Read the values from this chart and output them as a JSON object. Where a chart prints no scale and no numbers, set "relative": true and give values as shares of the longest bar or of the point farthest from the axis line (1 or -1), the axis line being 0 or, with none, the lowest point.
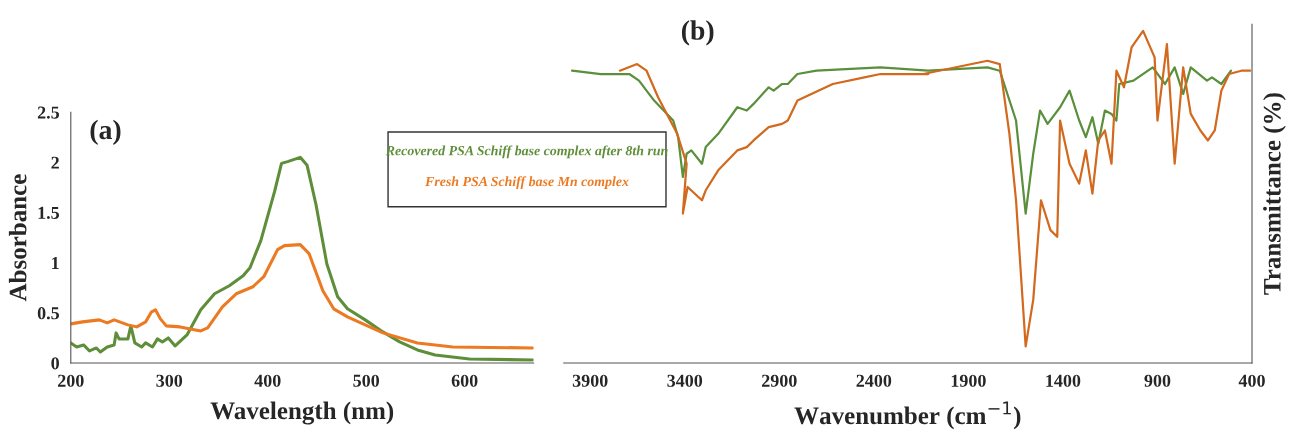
{
  "chart_data": [
    {
      "type": "line",
      "title": "(a)",
      "xlabel": "Wavelength (nm)",
      "ylabel": "Absorbance",
      "xlim": [
        200,
        670
      ],
      "ylim": [
        0,
        2.5
      ],
      "xticks": [
        200,
        300,
        400,
        500,
        600
      ],
      "yticks": [
        0,
        0.5,
        1,
        1.5,
        2,
        2.5
      ],
      "series": [
        {
          "name": "Recovered PSA Schiff base complex after 8th run",
          "color": "#5f8e3a",
          "x": [
            200,
            206,
            213,
            219,
            226,
            230,
            237,
            244,
            246,
            249,
            258,
            261,
            265,
            272,
            276,
            283,
            288,
            293,
            299,
            306,
            318,
            332,
            346,
            361,
            375,
            382,
            393,
            407,
            414,
            421,
            433,
            440,
            449,
            460,
            471,
            481,
            499,
            517,
            534,
            552,
            570,
            605,
            669
          ],
          "values": [
            0.2,
            0.16,
            0.18,
            0.12,
            0.15,
            0.11,
            0.16,
            0.18,
            0.3,
            0.24,
            0.24,
            0.37,
            0.2,
            0.16,
            0.2,
            0.16,
            0.24,
            0.21,
            0.25,
            0.17,
            0.28,
            0.53,
            0.69,
            0.77,
            0.87,
            0.95,
            1.22,
            1.71,
            1.99,
            2.01,
            2.05,
            1.97,
            1.58,
            0.99,
            0.66,
            0.54,
            0.43,
            0.31,
            0.21,
            0.13,
            0.08,
            0.04,
            0.03
          ]
        },
        {
          "name": "Fresh PSA Schiff base Mn complex",
          "color": "#ec7a22",
          "x": [
            200,
            212,
            229,
            237,
            244,
            258,
            267,
            276,
            282,
            286,
            291,
            297,
            311,
            332,
            339,
            354,
            368,
            385,
            396,
            410,
            417,
            433,
            442,
            456,
            467,
            481,
            499,
            517,
            552,
            588,
            669
          ],
          "values": [
            0.39,
            0.41,
            0.43,
            0.4,
            0.43,
            0.38,
            0.36,
            0.41,
            0.51,
            0.53,
            0.44,
            0.37,
            0.36,
            0.32,
            0.35,
            0.56,
            0.69,
            0.76,
            0.86,
            1.13,
            1.17,
            1.18,
            1.09,
            0.72,
            0.54,
            0.46,
            0.38,
            0.3,
            0.2,
            0.16,
            0.15
          ]
        }
      ]
    },
    {
      "type": "line",
      "title": "(b)",
      "xlabel": "Wavenumber (cm$^{−1}$)",
      "ylabel": "Transmittance (%)",
      "relative": true,
      "xlim": [
        4040,
        400
      ],
      "xticks": [
        3900,
        3400,
        2900,
        2400,
        1900,
        1400,
        900,
        400
      ],
      "series": [
        {
          "color": "#5a8f3c",
          "x": [
            3996,
            3844,
            3743,
            3693,
            3642,
            3562,
            3461,
            3435,
            3410,
            3390,
            3365,
            3309,
            3289,
            3223,
            3122,
            3072,
            3036,
            2956,
            2930,
            2885,
            2855,
            2804,
            2703,
            2365,
            2112,
            1799,
            1734,
            1648,
            1597,
            1557,
            1521,
            1481,
            1415,
            1365,
            1314,
            1279,
            1244,
            1213,
            1178,
            1143,
            1117,
            1102,
            1027,
            925,
            860,
            809,
            764,
            724,
            638,
            612,
            562,
            511
          ],
          "values": [
            0.88,
            0.87,
            0.87,
            0.87,
            0.85,
            0.79,
            0.73,
            0.68,
            0.56,
            0.63,
            0.64,
            0.6,
            0.65,
            0.69,
            0.77,
            0.76,
            0.78,
            0.83,
            0.82,
            0.84,
            0.84,
            0.87,
            0.88,
            0.89,
            0.88,
            0.89,
            0.88,
            0.73,
            0.45,
            0.63,
            0.76,
            0.72,
            0.77,
            0.82,
            0.73,
            0.68,
            0.74,
            0.66,
            0.76,
            0.75,
            0.73,
            0.84,
            0.85,
            0.89,
            0.84,
            0.89,
            0.81,
            0.89,
            0.85,
            0.86,
            0.84,
            0.88
          ]
        },
        {
          "color": "#d2691e",
          "x": [
            3743,
            3652,
            3602,
            3541,
            3440,
            3390,
            3410,
            3385,
            3309,
            3289,
            3223,
            3122,
            3072,
            3036,
            2956,
            2885,
            2855,
            2804,
            2617,
            2450,
            2365,
            2112,
            2138,
            1799,
            1734,
            1683,
            1648,
            1597,
            1557,
            1516,
            1466,
            1430,
            1415,
            1365,
            1314,
            1279,
            1244,
            1213,
            1178,
            1143,
            1117,
            1077,
            1037,
            976,
            915,
            900,
            850,
            809,
            764,
            724,
            673,
            633,
            597,
            562,
            521,
            456,
            410
          ],
          "values": [
            0.88,
            0.9,
            0.88,
            0.8,
            0.69,
            0.6,
            0.45,
            0.53,
            0.49,
            0.52,
            0.58,
            0.64,
            0.65,
            0.67,
            0.71,
            0.72,
            0.73,
            0.79,
            0.84,
            0.86,
            0.87,
            0.87,
            0.87,
            0.91,
            0.9,
            0.69,
            0.49,
            0.05,
            0.19,
            0.49,
            0.4,
            0.38,
            0.73,
            0.6,
            0.54,
            0.64,
            0.51,
            0.67,
            0.7,
            0.6,
            0.88,
            0.83,
            0.95,
            1.0,
            0.92,
            0.73,
            0.96,
            0.6,
            0.89,
            0.75,
            0.7,
            0.67,
            0.7,
            0.82,
            0.87,
            0.88,
            0.88
          ]
        }
      ]
    }
  ]
}
